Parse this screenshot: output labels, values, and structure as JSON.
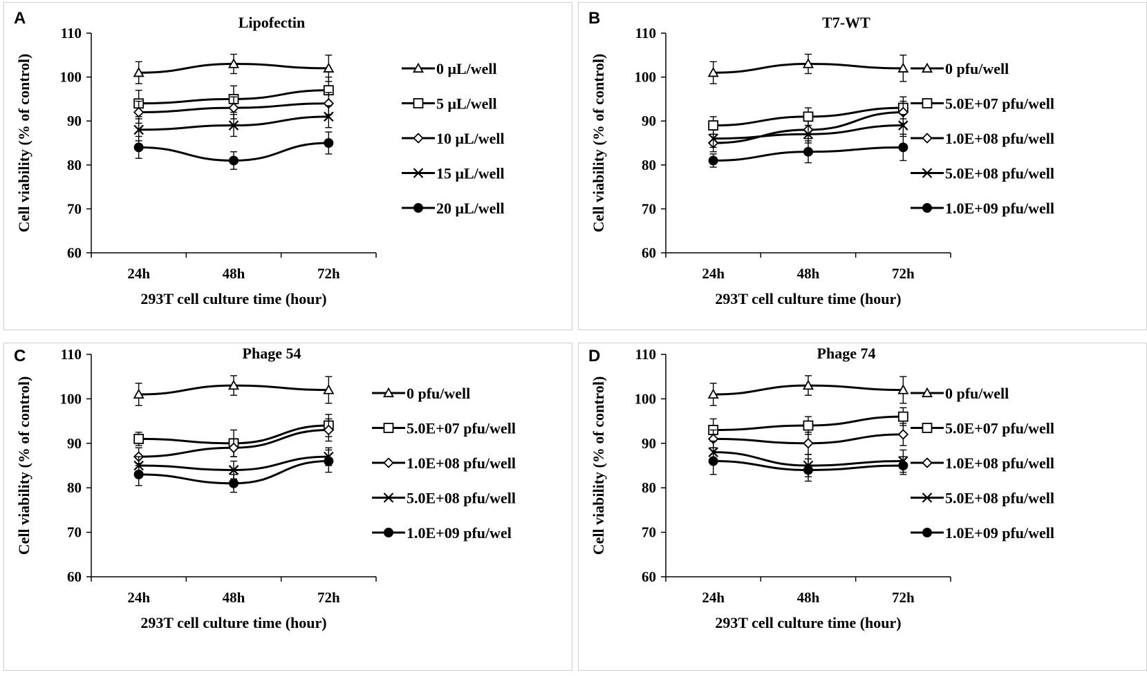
{
  "chart_data": [
    {
      "panel": "A",
      "type": "line",
      "title": "Lipofectin",
      "xlabel": "293T cell culture time (hour)",
      "ylabel": "Cell viability (% of control)",
      "categories": [
        "24h",
        "48h",
        "72h"
      ],
      "yticks": [
        "60",
        "70",
        "80",
        "90",
        "100",
        "110"
      ],
      "ylim": [
        60,
        110
      ],
      "series": [
        {
          "name": "0 μL/well",
          "marker": "triangle",
          "values": [
            101,
            103,
            102
          ],
          "errors": [
            2.5,
            2.2,
            3
          ]
        },
        {
          "name": "5 μL/well",
          "marker": "square",
          "values": [
            94,
            95,
            97
          ],
          "errors": [
            3,
            3,
            3
          ]
        },
        {
          "name": "10 μL/well",
          "marker": "diamond",
          "values": [
            92,
            93,
            94
          ],
          "errors": [
            2.5,
            2.5,
            2.5
          ]
        },
        {
          "name": "15 μL/well",
          "marker": "x",
          "values": [
            88,
            89,
            91
          ],
          "errors": [
            2.5,
            2.5,
            2.5
          ]
        },
        {
          "name": "20 μL/well",
          "marker": "circle",
          "values": [
            84,
            81,
            85
          ],
          "errors": [
            2.5,
            2,
            2.5
          ]
        }
      ]
    },
    {
      "panel": "B",
      "type": "line",
      "title": "T7-WT",
      "xlabel": "293T cell culture time (hour)",
      "ylabel": "Cell viability (% of control)",
      "categories": [
        "24h",
        "48h",
        "72h"
      ],
      "yticks": [
        "60",
        "70",
        "80",
        "90",
        "100",
        "110"
      ],
      "ylim": [
        60,
        110
      ],
      "series": [
        {
          "name": "0 pfu/well",
          "marker": "triangle",
          "values": [
            101,
            103,
            102
          ],
          "errors": [
            2.5,
            2.2,
            3
          ]
        },
        {
          "name": "5.0E+07 pfu/well",
          "marker": "square",
          "values": [
            89,
            91,
            93
          ],
          "errors": [
            2,
            2,
            2.5
          ]
        },
        {
          "name": "1.0E+08 pfu/well",
          "marker": "diamond",
          "values": [
            85,
            88,
            92
          ],
          "errors": [
            2,
            2,
            2.5
          ]
        },
        {
          "name": "5.0E+08 pfu/well",
          "marker": "x",
          "values": [
            86,
            87,
            89
          ],
          "errors": [
            2,
            2,
            2.5
          ]
        },
        {
          "name": "1.0E+09 pfu/well",
          "marker": "circle",
          "values": [
            81,
            83,
            84
          ],
          "errors": [
            1.5,
            2.5,
            3
          ]
        }
      ]
    },
    {
      "panel": "C",
      "type": "line",
      "title": "Phage 54",
      "xlabel": "293T cell culture time (hour)",
      "ylabel": "Cell viability (% of control)",
      "categories": [
        "24h",
        "48h",
        "72h"
      ],
      "yticks": [
        "60",
        "70",
        "80",
        "90",
        "100",
        "110"
      ],
      "ylim": [
        60,
        110
      ],
      "series": [
        {
          "name": "0 pfu/well",
          "marker": "triangle",
          "values": [
            101,
            103,
            102
          ],
          "errors": [
            2.5,
            2.2,
            3
          ]
        },
        {
          "name": "5.0E+07 pfu/well",
          "marker": "square",
          "values": [
            91,
            90,
            94
          ],
          "errors": [
            1.5,
            3,
            2.5
          ]
        },
        {
          "name": "1.0E+08 pfu/well",
          "marker": "diamond",
          "values": [
            87,
            89,
            93
          ],
          "errors": [
            2,
            2,
            2.5
          ]
        },
        {
          "name": "5.0E+08 pfu/well",
          "marker": "x",
          "values": [
            85,
            84,
            87
          ],
          "errors": [
            2,
            2,
            2
          ]
        },
        {
          "name": "1.0E+09 pfu/wel",
          "marker": "circle",
          "values": [
            83,
            81,
            86
          ],
          "errors": [
            2.5,
            2,
            2.5
          ]
        }
      ]
    },
    {
      "panel": "D",
      "type": "line",
      "title": "Phage 74",
      "xlabel": "293T cell culture time (hour)",
      "ylabel": "Cell viability (% of control)",
      "categories": [
        "24h",
        "48h",
        "72h"
      ],
      "yticks": [
        "60",
        "70",
        "80",
        "90",
        "100",
        "110"
      ],
      "ylim": [
        60,
        110
      ],
      "series": [
        {
          "name": "0 pfu/well",
          "marker": "triangle",
          "values": [
            101,
            103,
            102
          ],
          "errors": [
            2.5,
            2.2,
            3
          ]
        },
        {
          "name": "5.0E+07 pfu/well",
          "marker": "square",
          "values": [
            93,
            94,
            96
          ],
          "errors": [
            2.5,
            2,
            2
          ]
        },
        {
          "name": "1.0E+08 pfu/well",
          "marker": "diamond",
          "values": [
            91,
            90,
            92
          ],
          "errors": [
            2,
            2.5,
            2.5
          ]
        },
        {
          "name": "5.0E+08 pfu/well",
          "marker": "x",
          "values": [
            88,
            85,
            86
          ],
          "errors": [
            2.5,
            2.5,
            2.5
          ]
        },
        {
          "name": "1.0E+09 pfu/well",
          "marker": "circle",
          "values": [
            86,
            84,
            85
          ],
          "errors": [
            3,
            2.5,
            2
          ]
        }
      ]
    }
  ]
}
